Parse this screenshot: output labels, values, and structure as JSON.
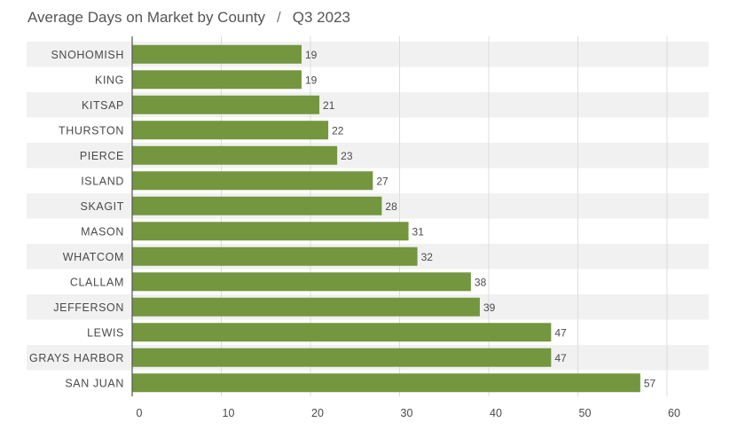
{
  "title": {
    "main": "Average Days on Market by County",
    "separator": "/",
    "period": "Q3 2023"
  },
  "colors": {
    "bar": "#73963f",
    "band": "#f1f1f1",
    "grid": "#dcdcdc",
    "axis": "#555555"
  },
  "chart_data": {
    "type": "bar",
    "orientation": "horizontal",
    "title": "Average Days on Market by County / Q3 2023",
    "xlabel": "",
    "ylabel": "",
    "xlim": [
      0,
      64
    ],
    "xticks": [
      0,
      10,
      20,
      30,
      40,
      50,
      60
    ],
    "grid": true,
    "categories": [
      "SNOHOMISH",
      "KING",
      "KITSAP",
      "THURSTON",
      "PIERCE",
      "ISLAND",
      "SKAGIT",
      "MASON",
      "WHATCOM",
      "CLALLAM",
      "JEFFERSON",
      "LEWIS",
      "GRAYS HARBOR",
      "SAN JUAN"
    ],
    "values": [
      19,
      19,
      21,
      22,
      23,
      27,
      28,
      31,
      32,
      38,
      39,
      47,
      47,
      57
    ]
  }
}
